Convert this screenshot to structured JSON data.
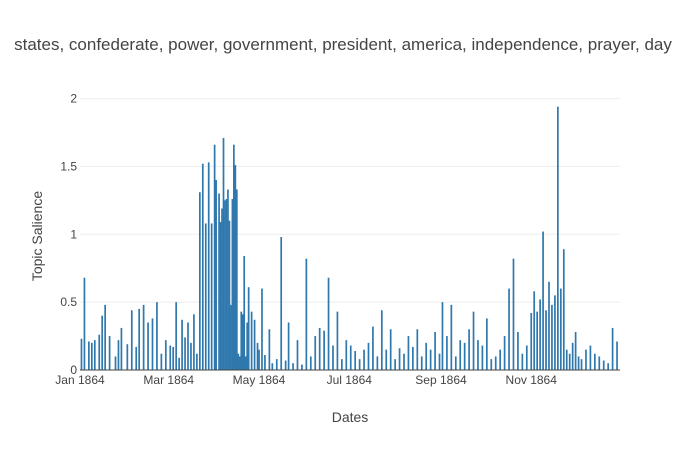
{
  "chart_data": {
    "type": "bar",
    "title": "states, confederate, power, government, president, america, independence, prayer, day",
    "xlabel": "Dates",
    "ylabel": "Topic Salience",
    "xlim": [
      "1864-01-01",
      "1864-12-31"
    ],
    "ylim": [
      0,
      2.1
    ],
    "y_ticks": [
      0,
      0.5,
      1,
      1.5,
      2
    ],
    "y_tick_labels": [
      "0",
      "0.5",
      "1",
      "1.5",
      "2"
    ],
    "x_ticks": [
      "1864-01-01",
      "1864-03-01",
      "1864-05-01",
      "1864-07-01",
      "1864-09-01",
      "1864-11-01"
    ],
    "x_tick_labels": [
      "Jan 1864",
      "Mar 1864",
      "May 1864",
      "Jul 1864",
      "Sep 1864",
      "Nov 1864"
    ],
    "grid": true,
    "bar_color": "#2e78ad",
    "x": [
      "1864-01-02",
      "1864-01-04",
      "1864-01-07",
      "1864-01-09",
      "1864-01-11",
      "1864-01-14",
      "1864-01-16",
      "1864-01-18",
      "1864-01-21",
      "1864-01-25",
      "1864-01-27",
      "1864-01-29",
      "1864-02-02",
      "1864-02-05",
      "1864-02-08",
      "1864-02-10",
      "1864-02-13",
      "1864-02-16",
      "1864-02-19",
      "1864-02-22",
      "1864-02-25",
      "1864-02-28",
      "1864-03-02",
      "1864-03-04",
      "1864-03-06",
      "1864-03-08",
      "1864-03-10",
      "1864-03-12",
      "1864-03-14",
      "1864-03-16",
      "1864-03-18",
      "1864-03-20",
      "1864-03-22",
      "1864-03-24",
      "1864-03-26",
      "1864-03-28",
      "1864-03-30",
      "1864-04-01",
      "1864-04-02",
      "1864-04-04",
      "1864-04-05",
      "1864-04-06",
      "1864-04-07",
      "1864-04-08",
      "1864-04-09",
      "1864-04-10",
      "1864-04-11",
      "1864-04-12",
      "1864-04-13",
      "1864-04-14",
      "1864-04-15",
      "1864-04-16",
      "1864-04-17",
      "1864-04-18",
      "1864-04-19",
      "1864-04-20",
      "1864-04-21",
      "1864-04-22",
      "1864-04-23",
      "1864-04-24",
      "1864-04-26",
      "1864-04-28",
      "1864-04-30",
      "1864-05-01",
      "1864-05-03",
      "1864-05-05",
      "1864-05-08",
      "1864-05-10",
      "1864-05-13",
      "1864-05-16",
      "1864-05-19",
      "1864-05-21",
      "1864-05-24",
      "1864-05-27",
      "1864-05-30",
      "1864-06-02",
      "1864-06-05",
      "1864-06-08",
      "1864-06-11",
      "1864-06-14",
      "1864-06-17",
      "1864-06-20",
      "1864-06-23",
      "1864-06-26",
      "1864-06-29",
      "1864-07-02",
      "1864-07-05",
      "1864-07-08",
      "1864-07-11",
      "1864-07-14",
      "1864-07-17",
      "1864-07-20",
      "1864-07-23",
      "1864-07-26",
      "1864-07-29",
      "1864-08-01",
      "1864-08-04",
      "1864-08-07",
      "1864-08-10",
      "1864-08-13",
      "1864-08-16",
      "1864-08-19",
      "1864-08-22",
      "1864-08-25",
      "1864-08-28",
      "1864-08-31",
      "1864-09-02",
      "1864-09-05",
      "1864-09-08",
      "1864-09-11",
      "1864-09-14",
      "1864-09-17",
      "1864-09-20",
      "1864-09-23",
      "1864-09-26",
      "1864-09-29",
      "1864-10-02",
      "1864-10-05",
      "1864-10-08",
      "1864-10-11",
      "1864-10-14",
      "1864-10-17",
      "1864-10-20",
      "1864-10-23",
      "1864-10-26",
      "1864-10-29",
      "1864-11-01",
      "1864-11-03",
      "1864-11-05",
      "1864-11-07",
      "1864-11-09",
      "1864-11-11",
      "1864-11-13",
      "1864-11-15",
      "1864-11-17",
      "1864-11-19",
      "1864-11-21",
      "1864-11-23",
      "1864-11-25",
      "1864-11-27",
      "1864-11-29",
      "1864-12-01",
      "1864-12-03",
      "1864-12-05",
      "1864-12-08",
      "1864-12-11",
      "1864-12-14",
      "1864-12-17",
      "1864-12-20",
      "1864-12-23",
      "1864-12-26",
      "1864-12-29"
    ],
    "values": [
      0.23,
      0.68,
      0.21,
      0.2,
      0.22,
      0.26,
      0.4,
      0.48,
      0.25,
      0.1,
      0.22,
      0.31,
      0.19,
      0.44,
      0.17,
      0.45,
      0.48,
      0.35,
      0.38,
      0.5,
      0.12,
      0.22,
      0.18,
      0.17,
      0.5,
      0.09,
      0.37,
      0.24,
      0.35,
      0.2,
      0.41,
      0.12,
      1.31,
      1.52,
      1.08,
      1.53,
      1.08,
      1.66,
      1.4,
      1.3,
      1.09,
      1.19,
      1.71,
      1.25,
      1.26,
      1.33,
      1.1,
      0.48,
      1.26,
      1.66,
      1.51,
      1.33,
      0.12,
      0.1,
      0.43,
      0.41,
      0.84,
      0.1,
      0.35,
      0.61,
      0.43,
      0.37,
      0.2,
      0.15,
      0.6,
      0.11,
      0.3,
      0.05,
      0.08,
      0.98,
      0.07,
      0.35,
      0.05,
      0.22,
      0.04,
      0.82,
      0.1,
      0.25,
      0.31,
      0.29,
      0.68,
      0.18,
      0.43,
      0.08,
      0.22,
      0.18,
      0.14,
      0.08,
      0.15,
      0.2,
      0.32,
      0.1,
      0.44,
      0.15,
      0.3,
      0.08,
      0.16,
      0.12,
      0.25,
      0.17,
      0.3,
      0.1,
      0.2,
      0.15,
      0.28,
      0.12,
      0.5,
      0.25,
      0.48,
      0.1,
      0.22,
      0.2,
      0.3,
      0.43,
      0.22,
      0.18,
      0.38,
      0.08,
      0.1,
      0.15,
      0.25,
      0.6,
      0.82,
      0.28,
      0.12,
      0.18,
      0.42,
      0.58,
      0.43,
      0.52,
      1.02,
      0.44,
      0.65,
      0.48,
      0.55,
      1.94,
      0.6,
      0.89,
      0.15,
      0.12,
      0.2,
      0.28,
      0.1,
      0.08,
      0.15,
      0.18,
      0.12,
      0.1,
      0.07,
      0.05,
      0.31,
      0.21
    ]
  }
}
